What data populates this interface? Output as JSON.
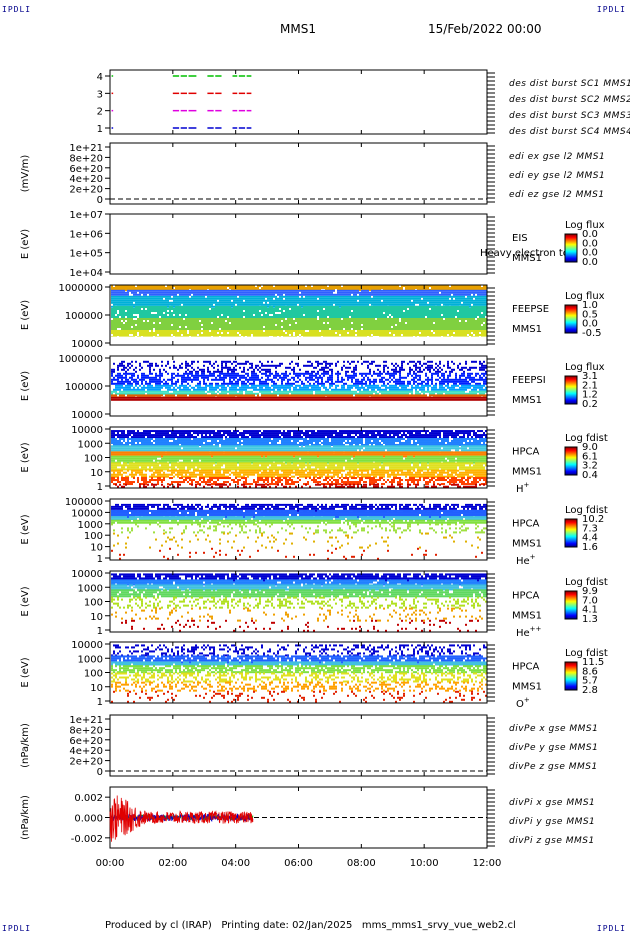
{
  "page": {
    "corner_tl": "IPDLI",
    "corner_tr": "IPDLI",
    "corner_bl": "IPDLI",
    "corner_br": "IPDLI",
    "spacecraft": "MMS1",
    "datetime": "15/Feb/2022 00:00",
    "footer": "Produced by cl (IRAP)   Printing date: 02/Jan/2025   mms_mms1_srvy_vue_web2.cl"
  },
  "colors": {
    "red": "#e00000",
    "green": "#00c000",
    "blue": "#0000d0",
    "magenta": "#e000e0"
  },
  "chart_data": [
    {
      "id": "burst",
      "type": "scatter",
      "yticks": [
        "1",
        "2",
        "3",
        "4"
      ],
      "legend": [
        {
          "name": "des dist burst SC1 MMS1",
          "color": "#0000d0"
        },
        {
          "name": "des dist burst SC2 MMS2",
          "color": "#e000e0"
        },
        {
          "name": "des dist burst SC3 MMS3",
          "color": "#e00000"
        },
        {
          "name": "des dist burst SC4 MMS4",
          "color": "#00c000"
        }
      ],
      "segments": [
        {
          "level": 4,
          "color": "#00c000",
          "x": [
            [
              0.05,
              0.1
            ],
            [
              2.0,
              2.2
            ],
            [
              2.25,
              2.45
            ],
            [
              2.5,
              2.75
            ],
            [
              3.1,
              3.3
            ],
            [
              3.35,
              3.55
            ],
            [
              3.9,
              4.05
            ],
            [
              4.1,
              4.3
            ],
            [
              4.35,
              4.5
            ]
          ]
        },
        {
          "level": 3,
          "color": "#e00000",
          "x": [
            [
              0.05,
              0.1
            ],
            [
              2.0,
              2.2
            ],
            [
              2.25,
              2.45
            ],
            [
              2.5,
              2.75
            ],
            [
              3.1,
              3.3
            ],
            [
              3.35,
              3.55
            ],
            [
              3.9,
              4.05
            ],
            [
              4.1,
              4.3
            ],
            [
              4.35,
              4.5
            ]
          ]
        },
        {
          "level": 2,
          "color": "#e000e0",
          "x": [
            [
              0.05,
              0.1
            ],
            [
              2.0,
              2.2
            ],
            [
              2.25,
              2.45
            ],
            [
              2.5,
              2.75
            ],
            [
              3.1,
              3.3
            ],
            [
              3.35,
              3.55
            ],
            [
              3.9,
              4.05
            ],
            [
              4.1,
              4.3
            ],
            [
              4.35,
              4.5
            ]
          ]
        },
        {
          "level": 1,
          "color": "#0000d0",
          "x": [
            [
              0.05,
              0.1
            ],
            [
              2.0,
              2.2
            ],
            [
              2.25,
              2.45
            ],
            [
              2.5,
              2.75
            ],
            [
              3.1,
              3.3
            ],
            [
              3.35,
              3.55
            ],
            [
              3.9,
              4.05
            ],
            [
              4.1,
              4.3
            ],
            [
              4.35,
              4.5
            ]
          ]
        }
      ]
    },
    {
      "id": "edi",
      "type": "line",
      "ylabel": "(mV/m)",
      "yticks": [
        "1e+21",
        "8e+20",
        "6e+20",
        "4e+20",
        "2e+20",
        "0"
      ],
      "ylim": [
        0,
        1e+21
      ],
      "legend": [
        {
          "name": "edi ex gse l2 MMS1",
          "color": "#e00000"
        },
        {
          "name": "edi ey gse l2 MMS1",
          "color": "#00c000"
        },
        {
          "name": "edi ez gse l2 MMS1",
          "color": "#0000d0"
        }
      ]
    },
    {
      "id": "eis",
      "type": "heatmap",
      "ylabel": "E (eV)",
      "yticks": [
        "1e+07",
        "1e+06",
        "1e+05",
        "1e+04"
      ],
      "label": [
        "EIS",
        "MMS1"
      ],
      "overlay": "Heavy electron to",
      "cbar_title": "Log flux",
      "cbar_ticks": [
        "0.0",
        "0.0",
        "0.0",
        "0.0"
      ]
    },
    {
      "id": "feepse",
      "type": "heatmap",
      "ylabel": "E (eV)",
      "yticks": [
        "1000000",
        "100000",
        "10000"
      ],
      "label": [
        "FEEPSE",
        "MMS1"
      ],
      "cbar_title": "Log flux",
      "cbar_ticks": [
        "1.0",
        "0.5",
        "0.0",
        "-0.5"
      ],
      "bands": [
        {
          "y": [
            0.0,
            0.08
          ],
          "color": "#e8a000",
          "fill": 0.95
        },
        {
          "y": [
            0.08,
            0.18
          ],
          "color": "#3060ff",
          "fill": 0.95
        },
        {
          "y": [
            0.18,
            0.35
          ],
          "color": "#00b0d8",
          "fill": 0.95
        },
        {
          "y": [
            0.35,
            0.55
          ],
          "color": "#20c8a0",
          "fill": 0.95
        },
        {
          "y": [
            0.55,
            0.75
          ],
          "color": "#80d040",
          "fill": 0.95
        },
        {
          "y": [
            0.75,
            0.86
          ],
          "color": "#d8e020",
          "fill": 0.9
        },
        {
          "y": [
            0.86,
            0.92
          ],
          "color": "#ffffff",
          "fill": 1.0
        }
      ]
    },
    {
      "id": "feepsi",
      "type": "heatmap",
      "ylabel": "E (eV)",
      "yticks": [
        "1000000",
        "100000",
        "10000"
      ],
      "label": [
        "FEEPSI",
        "MMS1"
      ],
      "cbar_title": "Log flux",
      "cbar_ticks": [
        "3.1",
        "2.1",
        "1.2",
        "0.2"
      ],
      "bands": [
        {
          "y": [
            0.08,
            0.28
          ],
          "color": "#0000d0",
          "fill": 0.35
        },
        {
          "y": [
            0.28,
            0.48
          ],
          "color": "#0020ff",
          "fill": 0.6
        },
        {
          "y": [
            0.48,
            0.58
          ],
          "color": "#00a0ff",
          "fill": 0.8
        },
        {
          "y": [
            0.58,
            0.64
          ],
          "color": "#40e0c0",
          "fill": 0.9
        },
        {
          "y": [
            0.64,
            0.68
          ],
          "color": "#e06000",
          "fill": 0.95
        },
        {
          "y": [
            0.68,
            0.72
          ],
          "color": "#b00000",
          "fill": 1.0
        }
      ]
    },
    {
      "id": "hpca_h",
      "type": "heatmap",
      "ylabel": "E (eV)",
      "yticks": [
        "10000",
        "1000",
        "100",
        "10",
        "1"
      ],
      "label": [
        "HPCA",
        "MMS1"
      ],
      "species": "H",
      "species_sup": "+",
      "cbar_title": "Log fdist",
      "cbar_ticks": [
        "9.0",
        "6.1",
        "3.2",
        "0.4"
      ],
      "bands": [
        {
          "y": [
            0.05,
            0.18
          ],
          "color": "#0000d0",
          "fill": 0.85
        },
        {
          "y": [
            0.18,
            0.3
          ],
          "color": "#2080ff",
          "fill": 0.9
        },
        {
          "y": [
            0.3,
            0.4
          ],
          "color": "#40c8e0",
          "fill": 0.95
        },
        {
          "y": [
            0.4,
            0.47
          ],
          "color": "#ff8000",
          "fill": 1.0
        },
        {
          "y": [
            0.47,
            0.58
          ],
          "color": "#80e040",
          "fill": 0.95
        },
        {
          "y": [
            0.58,
            0.7
          ],
          "color": "#e0e020",
          "fill": 0.9
        },
        {
          "y": [
            0.7,
            0.82
          ],
          "color": "#ffb000",
          "fill": 0.8
        },
        {
          "y": [
            0.82,
            0.93
          ],
          "color": "#ff4000",
          "fill": 0.55
        },
        {
          "y": [
            0.93,
            0.99
          ],
          "color": "#c00000",
          "fill": 0.4
        }
      ]
    },
    {
      "id": "hpca_he",
      "type": "heatmap",
      "ylabel": "E (eV)",
      "yticks": [
        "100000",
        "10000",
        "1000",
        "100",
        "10",
        "1"
      ],
      "label": [
        "HPCA",
        "MMS1"
      ],
      "species": "He",
      "species_sup": "+",
      "cbar_title": "Log fdist",
      "cbar_ticks": [
        "10.2",
        "7.3",
        "4.4",
        "1.6"
      ],
      "bands": [
        {
          "y": [
            0.08,
            0.18
          ],
          "color": "#0000d0",
          "fill": 0.7
        },
        {
          "y": [
            0.18,
            0.28
          ],
          "color": "#2060ff",
          "fill": 0.95
        },
        {
          "y": [
            0.28,
            0.34
          ],
          "color": "#40c0e0",
          "fill": 0.95
        },
        {
          "y": [
            0.34,
            0.4
          ],
          "color": "#80e040",
          "fill": 0.9
        },
        {
          "y": [
            0.4,
            0.55
          ],
          "color": "#a0e040",
          "fill": 0.2
        },
        {
          "y": [
            0.55,
            0.8
          ],
          "color": "#e0b000",
          "fill": 0.06
        },
        {
          "y": [
            0.8,
            0.99
          ],
          "color": "#e02000",
          "fill": 0.04
        }
      ]
    },
    {
      "id": "hpca_he2",
      "type": "heatmap",
      "ylabel": "E (eV)",
      "yticks": [
        "10000",
        "1000",
        "100",
        "10",
        "1"
      ],
      "label": [
        "HPCA",
        "MMS1"
      ],
      "species": "He",
      "species_sup": "++",
      "cbar_title": "Log fdist",
      "cbar_ticks": [
        "9.9",
        "7.0",
        "4.1",
        "1.3"
      ],
      "bands": [
        {
          "y": [
            0.04,
            0.14
          ],
          "color": "#0000d0",
          "fill": 0.8
        },
        {
          "y": [
            0.14,
            0.22
          ],
          "color": "#2080ff",
          "fill": 0.95
        },
        {
          "y": [
            0.22,
            0.3
          ],
          "color": "#40c0e0",
          "fill": 0.95
        },
        {
          "y": [
            0.3,
            0.42
          ],
          "color": "#60d860",
          "fill": 0.9
        },
        {
          "y": [
            0.42,
            0.6
          ],
          "color": "#b0e020",
          "fill": 0.3
        },
        {
          "y": [
            0.6,
            0.8
          ],
          "color": "#f0a000",
          "fill": 0.12
        },
        {
          "y": [
            0.8,
            0.99
          ],
          "color": "#c00000",
          "fill": 0.08
        }
      ]
    },
    {
      "id": "hpca_o",
      "type": "heatmap",
      "ylabel": "E (eV)",
      "yticks": [
        "10000",
        "1000",
        "100",
        "10",
        "1"
      ],
      "label": [
        "HPCA",
        "MMS1"
      ],
      "species": "O",
      "species_sup": "+",
      "cbar_title": "Log fdist",
      "cbar_ticks": [
        "11.5",
        "8.6",
        "5.7",
        "2.8"
      ],
      "bands": [
        {
          "y": [
            0.04,
            0.22
          ],
          "color": "#0000d0",
          "fill": 0.35
        },
        {
          "y": [
            0.22,
            0.32
          ],
          "color": "#2060ff",
          "fill": 0.85
        },
        {
          "y": [
            0.32,
            0.38
          ],
          "color": "#40c0e0",
          "fill": 0.95
        },
        {
          "y": [
            0.38,
            0.5
          ],
          "color": "#80e040",
          "fill": 0.7
        },
        {
          "y": [
            0.5,
            0.65
          ],
          "color": "#e0e020",
          "fill": 0.4
        },
        {
          "y": [
            0.65,
            0.8
          ],
          "color": "#ffa000",
          "fill": 0.35
        },
        {
          "y": [
            0.8,
            0.99
          ],
          "color": "#e02000",
          "fill": 0.12
        }
      ]
    },
    {
      "id": "divpe",
      "type": "line",
      "ylabel": "(nPa/km)",
      "yticks": [
        "1e+21",
        "8e+20",
        "6e+20",
        "4e+20",
        "2e+20",
        "0"
      ],
      "ylim": [
        0,
        1e+21
      ],
      "legend": [
        {
          "name": "divPe x gse MMS1",
          "color": "#e00000"
        },
        {
          "name": "divPe y gse MMS1",
          "color": "#00c000"
        },
        {
          "name": "divPe z gse MMS1",
          "color": "#0000d0"
        }
      ]
    },
    {
      "id": "divpi",
      "type": "line",
      "ylabel": "(nPa/km)",
      "yticks": [
        "0.002",
        "0.000",
        "-0.002"
      ],
      "ylim": [
        -0.003,
        0.003
      ],
      "legend": [
        {
          "name": "divPi x gse MMS1",
          "color": "#e00000"
        },
        {
          "name": "divPi y gse MMS1",
          "color": "#00c000"
        },
        {
          "name": "divPi z gse MMS1",
          "color": "#0000d0"
        }
      ],
      "data_extent_hours": [
        0.0,
        4.55
      ]
    }
  ],
  "xaxis": {
    "ticks": [
      "00:00",
      "02:00",
      "04:00",
      "06:00",
      "08:00",
      "10:00",
      "12:00"
    ],
    "xlim_hours": [
      0,
      12
    ]
  }
}
